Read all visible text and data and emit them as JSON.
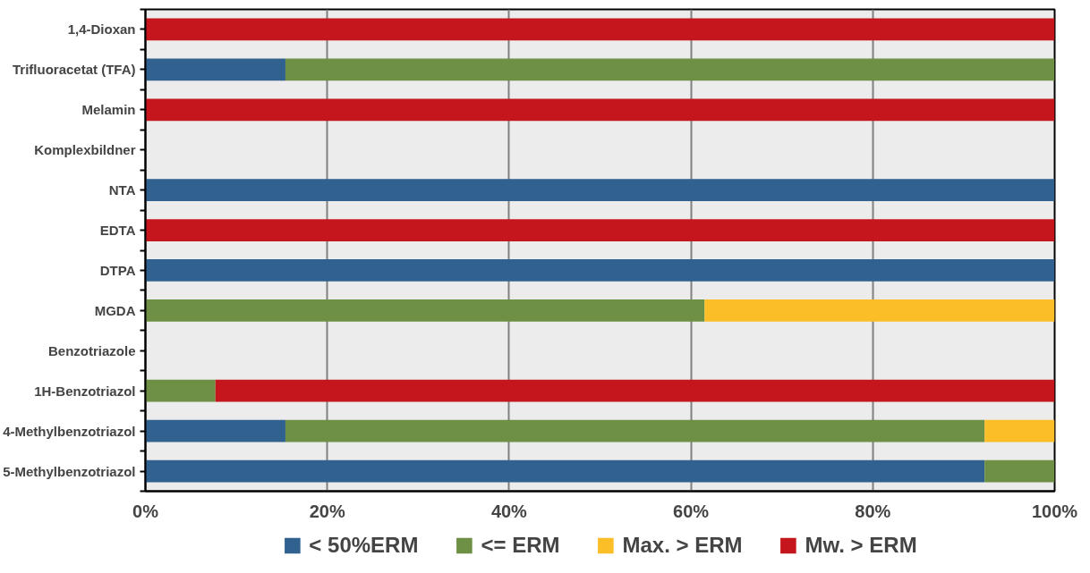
{
  "chart_data": {
    "type": "bar",
    "orientation": "horizontal",
    "stacked": true,
    "categories": [
      "1,4-Dioxan",
      "Trifluoracetat (TFA)",
      "Melamin",
      "Komplexbildner",
      "NTA",
      "EDTA",
      "DTPA",
      "MGDA",
      "Benzotriazole",
      "1H-Benzotriazol",
      "4-Methylbenzotriazol",
      "5-Methylbenzotriazol"
    ],
    "series": [
      {
        "name": "< 50%ERM",
        "color": "#31618f",
        "values": [
          null,
          15.4,
          null,
          null,
          100,
          null,
          100,
          null,
          null,
          null,
          15.4,
          92.3
        ]
      },
      {
        "name": "<= ERM",
        "color": "#6e9044",
        "values": [
          null,
          84.6,
          null,
          null,
          null,
          null,
          null,
          61.5,
          null,
          7.7,
          76.9,
          7.7
        ]
      },
      {
        "name": "Max. > ERM",
        "color": "#fcbe26",
        "values": [
          null,
          null,
          null,
          null,
          null,
          null,
          null,
          38.5,
          null,
          null,
          7.7,
          null
        ]
      },
      {
        "name": "Mw. > ERM",
        "color": "#c6161d",
        "values": [
          100,
          null,
          100,
          null,
          null,
          100,
          null,
          null,
          null,
          92.3,
          null,
          null
        ]
      }
    ],
    "xlim": [
      0,
      100
    ],
    "xticks": [
      {
        "value": 0,
        "label": "0%"
      },
      {
        "value": 20,
        "label": "20%"
      },
      {
        "value": 40,
        "label": "40%"
      },
      {
        "value": 60,
        "label": "60%"
      },
      {
        "value": 80,
        "label": "80%"
      },
      {
        "value": 100,
        "label": "100%"
      }
    ],
    "grid": "x",
    "legend": "bottom"
  }
}
